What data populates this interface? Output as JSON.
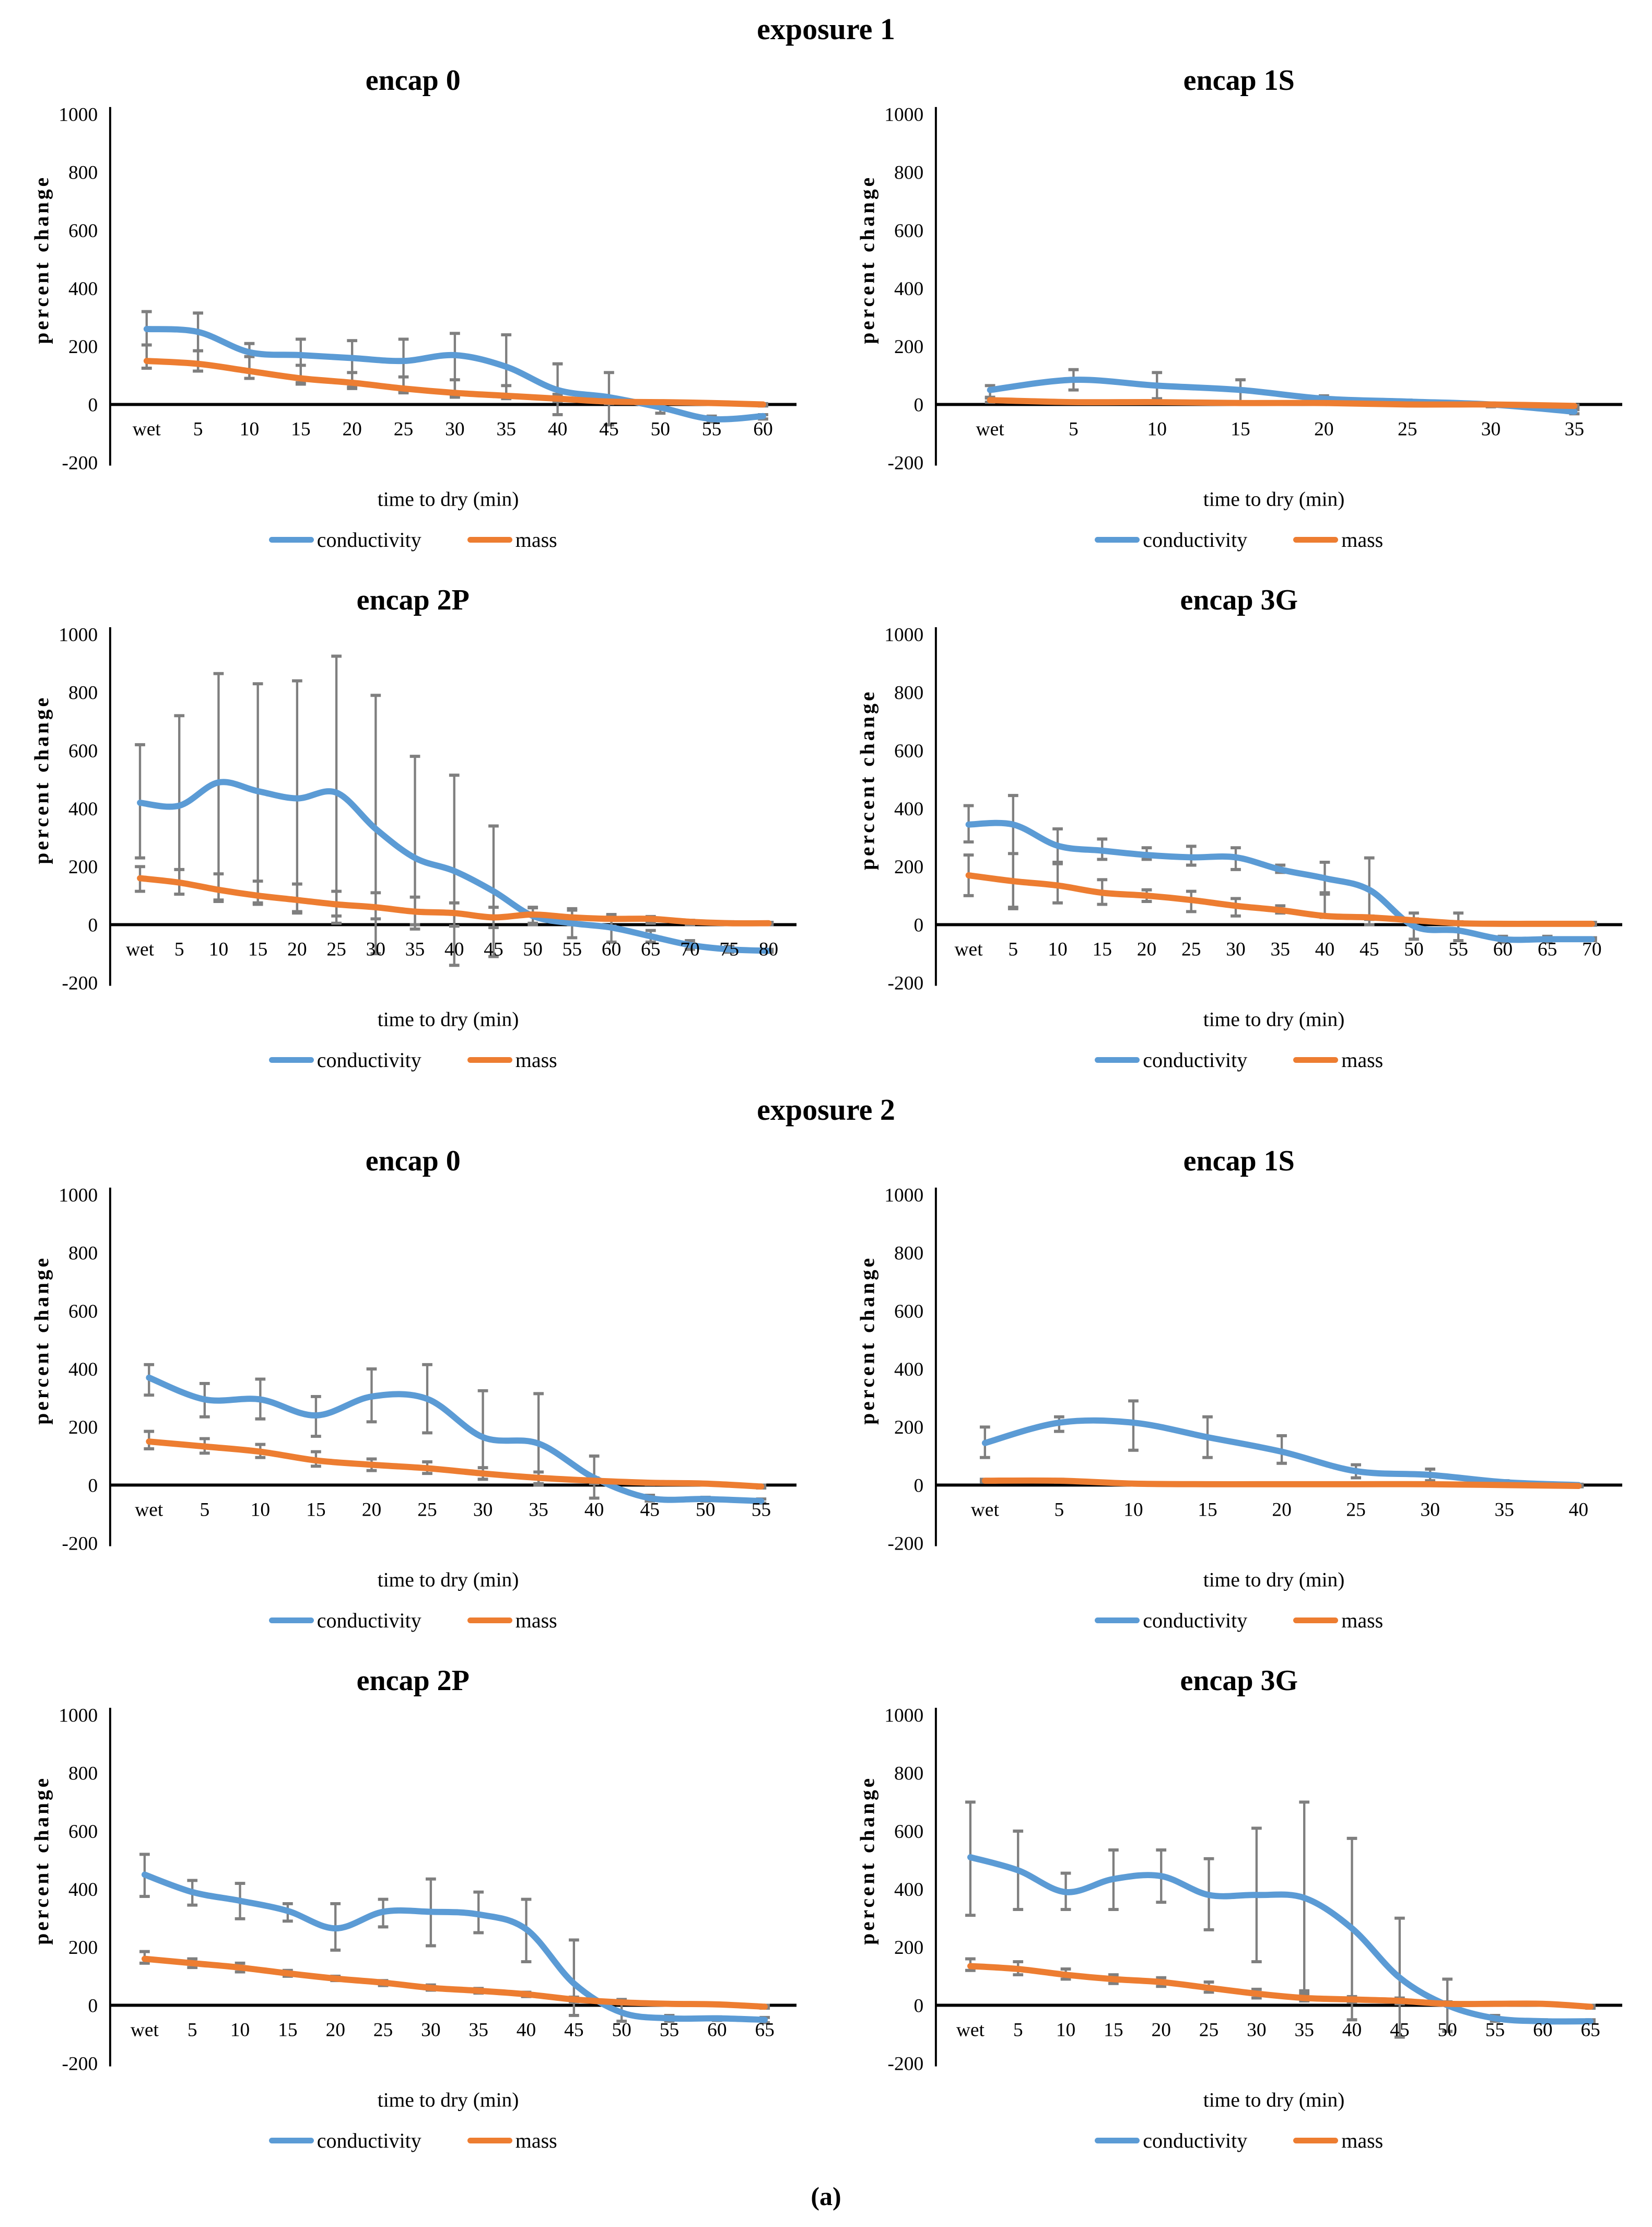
{
  "page": {
    "figure_label": "(a)"
  },
  "sections": [
    {
      "label": "exposure 1"
    },
    {
      "label": "exposure 2"
    }
  ],
  "legend": {
    "conductivity": "conductivity",
    "mass": "mass"
  },
  "colors": {
    "conductivity": "#5B9BD5",
    "mass": "#ED7D31",
    "error_bar": "#7F7F7F",
    "axis": "#000000"
  },
  "chart_data": [
    {
      "type": "line",
      "section": "exposure 1",
      "title": "encap 0",
      "xlabel": "time to dry (min)",
      "ylabel": "percent change",
      "ylim": [
        -200,
        1000
      ],
      "yticks": [
        -200,
        0,
        200,
        400,
        600,
        800,
        1000
      ],
      "grid": false,
      "legend_position": "bottom",
      "categories": [
        "wet",
        "5",
        "10",
        "15",
        "20",
        "25",
        "30",
        "35",
        "40",
        "45",
        "50",
        "55",
        "60"
      ],
      "series": [
        {
          "name": "conductivity",
          "values": [
            260,
            250,
            180,
            170,
            160,
            150,
            170,
            130,
            50,
            25,
            -10,
            -50,
            -40
          ],
          "err_hi": [
            320,
            315,
            210,
            225,
            220,
            225,
            245,
            240,
            140,
            110,
            10,
            -40,
            -35
          ],
          "err_lo": [
            125,
            115,
            90,
            75,
            60,
            45,
            30,
            25,
            -35,
            -70,
            -30,
            -60,
            -50
          ]
        },
        {
          "name": "mass",
          "values": [
            150,
            140,
            115,
            90,
            75,
            55,
            40,
            30,
            20,
            10,
            8,
            5,
            0
          ],
          "err_hi": [
            205,
            185,
            165,
            135,
            110,
            95,
            85,
            65,
            35,
            18,
            12,
            8,
            3
          ],
          "err_lo": [
            125,
            115,
            90,
            70,
            55,
            40,
            25,
            20,
            10,
            3,
            3,
            0,
            -5
          ]
        }
      ]
    },
    {
      "type": "line",
      "section": "exposure 1",
      "title": "encap 1S",
      "xlabel": "time to dry (min)",
      "ylabel": "percent change",
      "ylim": [
        -200,
        1000
      ],
      "yticks": [
        -200,
        0,
        200,
        400,
        600,
        800,
        1000
      ],
      "grid": false,
      "legend_position": "bottom",
      "categories": [
        "wet",
        "5",
        "10",
        "15",
        "20",
        "25",
        "30",
        "35"
      ],
      "series": [
        {
          "name": "conductivity",
          "values": [
            50,
            85,
            65,
            50,
            20,
            10,
            0,
            -25
          ],
          "err_hi": [
            65,
            120,
            110,
            85,
            30,
            15,
            5,
            -18
          ],
          "err_lo": [
            25,
            50,
            20,
            5,
            8,
            0,
            -8,
            -32
          ]
        },
        {
          "name": "mass",
          "values": [
            15,
            8,
            8,
            5,
            5,
            0,
            0,
            -5
          ],
          "err_hi": [
            22,
            12,
            12,
            8,
            8,
            3,
            3,
            -2
          ],
          "err_lo": [
            8,
            4,
            4,
            2,
            2,
            -3,
            -3,
            -8
          ]
        }
      ]
    },
    {
      "type": "line",
      "section": "exposure 1",
      "title": "encap 2P",
      "xlabel": "time to dry (min)",
      "ylabel": "percent change",
      "ylim": [
        -200,
        1000
      ],
      "yticks": [
        -200,
        0,
        200,
        400,
        600,
        800,
        1000
      ],
      "grid": false,
      "legend_position": "bottom",
      "categories": [
        "wet",
        "5",
        "10",
        "15",
        "20",
        "25",
        "30",
        "35",
        "40",
        "45",
        "50",
        "55",
        "60",
        "65",
        "70",
        "75",
        "80"
      ],
      "series": [
        {
          "name": "conductivity",
          "values": [
            420,
            410,
            490,
            460,
            435,
            455,
            330,
            230,
            185,
            115,
            30,
            5,
            -10,
            -40,
            -70,
            -85,
            -90
          ],
          "err_hi": [
            620,
            720,
            865,
            830,
            840,
            925,
            790,
            580,
            515,
            340,
            60,
            55,
            30,
            -20,
            -55,
            -75,
            -85
          ],
          "err_lo": [
            230,
            105,
            85,
            75,
            45,
            5,
            -100,
            -15,
            -140,
            -110,
            0,
            -45,
            -60,
            -60,
            -85,
            -95,
            -95
          ]
        },
        {
          "name": "mass",
          "values": [
            160,
            145,
            120,
            100,
            85,
            70,
            60,
            45,
            40,
            25,
            35,
            25,
            20,
            20,
            10,
            5,
            5
          ],
          "err_hi": [
            200,
            190,
            175,
            150,
            140,
            115,
            110,
            95,
            75,
            60,
            58,
            50,
            35,
            28,
            15,
            10,
            8
          ],
          "err_lo": [
            115,
            105,
            80,
            70,
            40,
            30,
            20,
            0,
            -5,
            -10,
            5,
            0,
            -5,
            5,
            0,
            0,
            0
          ]
        }
      ]
    },
    {
      "type": "line",
      "section": "exposure 1",
      "title": "encap 3G",
      "xlabel": "time to dry (min)",
      "ylabel": "perccent change",
      "ylim": [
        -200,
        1000
      ],
      "yticks": [
        -200,
        0,
        200,
        400,
        600,
        800,
        1000
      ],
      "grid": false,
      "legend_position": "bottom",
      "categories": [
        "wet",
        "5",
        "10",
        "15",
        "20",
        "25",
        "30",
        "35",
        "40",
        "45",
        "50",
        "55",
        "60",
        "65",
        "70"
      ],
      "series": [
        {
          "name": "conductivity",
          "values": [
            345,
            345,
            272,
            255,
            240,
            232,
            232,
            190,
            160,
            120,
            -5,
            -20,
            -50,
            -50,
            -50
          ],
          "err_hi": [
            410,
            445,
            330,
            295,
            265,
            270,
            265,
            205,
            215,
            230,
            40,
            40,
            -40,
            -40,
            -45
          ],
          "err_lo": [
            285,
            55,
            215,
            225,
            225,
            205,
            190,
            180,
            105,
            0,
            -50,
            -55,
            -60,
            -60,
            -55
          ]
        },
        {
          "name": "mass",
          "values": [
            170,
            150,
            135,
            110,
            100,
            85,
            65,
            50,
            30,
            25,
            15,
            5,
            3,
            3,
            3
          ],
          "err_hi": [
            240,
            245,
            210,
            155,
            120,
            115,
            90,
            65,
            110,
            30,
            20,
            10,
            8,
            8,
            8
          ],
          "err_lo": [
            100,
            60,
            75,
            70,
            80,
            45,
            30,
            40,
            25,
            18,
            8,
            0,
            -2,
            -2,
            -2
          ]
        }
      ]
    },
    {
      "type": "line",
      "section": "exposure 2",
      "title": "encap 0",
      "xlabel": "time to dry (min)",
      "ylabel": "percent change",
      "ylim": [
        -200,
        1000
      ],
      "yticks": [
        -200,
        0,
        200,
        400,
        600,
        800,
        1000
      ],
      "grid": false,
      "legend_position": "bottom",
      "categories": [
        "wet",
        "5",
        "10",
        "15",
        "20",
        "25",
        "30",
        "35",
        "40",
        "45",
        "50",
        "55"
      ],
      "series": [
        {
          "name": "conductivity",
          "values": [
            370,
            295,
            295,
            240,
            305,
            297,
            165,
            143,
            25,
            -45,
            -48,
            -55
          ],
          "err_hi": [
            415,
            350,
            365,
            305,
            400,
            415,
            325,
            315,
            100,
            -35,
            -42,
            -48
          ],
          "err_lo": [
            310,
            235,
            228,
            168,
            218,
            180,
            20,
            0,
            -45,
            -55,
            -55,
            -62
          ]
        },
        {
          "name": "mass",
          "values": [
            150,
            133,
            115,
            85,
            70,
            58,
            40,
            25,
            15,
            8,
            5,
            -5
          ],
          "err_hi": [
            185,
            160,
            140,
            115,
            90,
            80,
            60,
            45,
            25,
            12,
            8,
            0
          ],
          "err_lo": [
            125,
            110,
            95,
            65,
            50,
            40,
            20,
            5,
            5,
            2,
            0,
            -10
          ]
        }
      ]
    },
    {
      "type": "line",
      "section": "exposure 2",
      "title": "encap 1S",
      "xlabel": "time to dry (min)",
      "ylabel": "percent change",
      "ylim": [
        -200,
        1000
      ],
      "yticks": [
        -200,
        0,
        200,
        400,
        600,
        800,
        1000
      ],
      "grid": false,
      "legend_position": "bottom",
      "categories": [
        "wet",
        "5",
        "10",
        "15",
        "20",
        "25",
        "30",
        "35",
        "40"
      ],
      "series": [
        {
          "name": "conductivity",
          "values": [
            145,
            215,
            215,
            165,
            115,
            48,
            35,
            10,
            0
          ],
          "err_hi": [
            200,
            235,
            290,
            235,
            170,
            70,
            55,
            15,
            3
          ],
          "err_lo": [
            95,
            185,
            120,
            95,
            75,
            25,
            15,
            0,
            -5
          ]
        },
        {
          "name": "mass",
          "values": [
            15,
            15,
            5,
            3,
            3,
            3,
            3,
            0,
            -3
          ],
          "err_hi": [
            20,
            20,
            8,
            5,
            5,
            5,
            5,
            3,
            0
          ],
          "err_lo": [
            10,
            10,
            2,
            0,
            0,
            0,
            0,
            -3,
            -6
          ]
        }
      ]
    },
    {
      "type": "line",
      "section": "exposure 2",
      "title": "encap 2P",
      "xlabel": "time to dry (min)",
      "ylabel": "percent change",
      "ylim": [
        -200,
        1000
      ],
      "yticks": [
        -200,
        0,
        200,
        400,
        600,
        800,
        1000
      ],
      "grid": false,
      "legend_position": "bottom",
      "categories": [
        "wet",
        "5",
        "10",
        "15",
        "20",
        "25",
        "30",
        "35",
        "40",
        "45",
        "50",
        "55",
        "60",
        "65"
      ],
      "series": [
        {
          "name": "conductivity",
          "values": [
            450,
            390,
            360,
            325,
            265,
            322,
            322,
            313,
            262,
            75,
            -25,
            -45,
            -45,
            -50
          ],
          "err_hi": [
            520,
            430,
            420,
            350,
            350,
            365,
            435,
            390,
            365,
            225,
            20,
            -35,
            -40,
            -42
          ],
          "err_lo": [
            375,
            345,
            298,
            290,
            190,
            270,
            205,
            250,
            150,
            -35,
            -55,
            -55,
            -52,
            -60
          ]
        },
        {
          "name": "mass",
          "values": [
            160,
            145,
            130,
            110,
            92,
            78,
            60,
            50,
            38,
            20,
            10,
            5,
            3,
            -5
          ],
          "err_hi": [
            185,
            160,
            145,
            120,
            100,
            85,
            70,
            58,
            45,
            28,
            15,
            8,
            5,
            0
          ],
          "err_lo": [
            145,
            130,
            115,
            100,
            85,
            68,
            52,
            42,
            30,
            12,
            5,
            0,
            -2,
            -10
          ]
        }
      ]
    },
    {
      "type": "line",
      "section": "exposure 2",
      "title": "encap 3G",
      "xlabel": "time to dry (min)",
      "ylabel": "percent change",
      "ylim": [
        -200,
        1000
      ],
      "yticks": [
        -200,
        0,
        200,
        400,
        600,
        800,
        1000
      ],
      "grid": false,
      "legend_position": "bottom",
      "categories": [
        "wet",
        "5",
        "10",
        "15",
        "20",
        "25",
        "30",
        "35",
        "40",
        "45",
        "50",
        "55",
        "60",
        "65"
      ],
      "series": [
        {
          "name": "conductivity",
          "values": [
            510,
            465,
            390,
            435,
            445,
            380,
            380,
            370,
            265,
            95,
            0,
            -45,
            -55,
            -55
          ],
          "err_hi": [
            700,
            600,
            455,
            535,
            535,
            505,
            610,
            700,
            575,
            300,
            90,
            -35,
            -50,
            -50
          ],
          "err_lo": [
            310,
            330,
            330,
            330,
            355,
            260,
            150,
            50,
            -50,
            -110,
            -90,
            -55,
            -60,
            -60
          ]
        },
        {
          "name": "mass",
          "values": [
            135,
            125,
            105,
            90,
            80,
            60,
            40,
            25,
            20,
            15,
            5,
            5,
            5,
            -5
          ],
          "err_hi": [
            160,
            150,
            125,
            105,
            95,
            80,
            55,
            40,
            30,
            25,
            12,
            10,
            8,
            0
          ],
          "err_lo": [
            120,
            105,
            90,
            75,
            65,
            45,
            25,
            15,
            10,
            5,
            0,
            0,
            0,
            -10
          ]
        }
      ]
    }
  ]
}
